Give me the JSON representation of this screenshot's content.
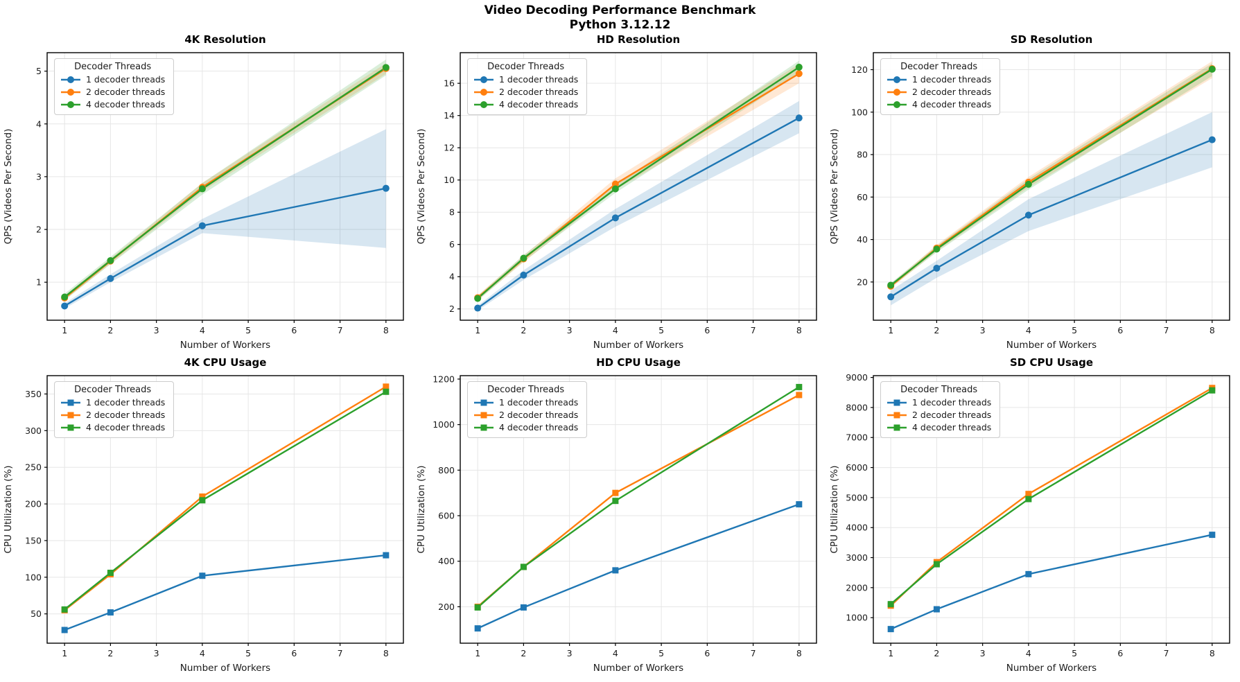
{
  "page": {
    "title_line1": "Video Decoding Performance Benchmark",
    "title_line2": "Python 3.12.12"
  },
  "colors": {
    "blue": "#1f77b4",
    "orange": "#ff7f0e",
    "green": "#2ca02c",
    "grid": "#e6e6e6",
    "frame": "#000000",
    "text": "#1a1a1a",
    "band_opacity": 0.18
  },
  "legend": {
    "title": "Decoder Threads",
    "entries": [
      "1 decoder threads",
      "2 decoder threads",
      "4 decoder threads"
    ]
  },
  "chart_data": [
    {
      "type": "line",
      "title": "4K Resolution",
      "xlabel": "Number of Workers",
      "ylabel": "QPS (Videos Per Second)",
      "x": [
        1,
        2,
        4,
        8
      ],
      "xticks": [
        1,
        2,
        3,
        4,
        5,
        6,
        7,
        8
      ],
      "xlim": [
        0.62,
        8.38
      ],
      "yticks": [
        1,
        2,
        3,
        4,
        5
      ],
      "ylim": [
        0.28,
        5.35
      ],
      "marker": "circle",
      "legend_title": "Decoder Threads",
      "series": [
        {
          "name": "1 decoder threads",
          "color": "#1f77b4",
          "values": [
            0.55,
            1.07,
            2.07,
            2.78
          ],
          "band_lo": [
            0.5,
            1.0,
            1.93,
            1.65
          ],
          "band_hi": [
            0.6,
            1.15,
            2.2,
            3.9
          ]
        },
        {
          "name": "2 decoder threads",
          "color": "#ff7f0e",
          "values": [
            0.7,
            1.4,
            2.8,
            5.05
          ],
          "band_lo": [
            0.66,
            1.35,
            2.72,
            4.95
          ],
          "band_hi": [
            0.74,
            1.45,
            2.88,
            5.15
          ]
        },
        {
          "name": "4 decoder threads",
          "color": "#2ca02c",
          "values": [
            0.72,
            1.41,
            2.77,
            5.07
          ],
          "band_lo": [
            0.66,
            1.34,
            2.66,
            4.92
          ],
          "band_hi": [
            0.78,
            1.48,
            2.88,
            5.22
          ]
        }
      ]
    },
    {
      "type": "line",
      "title": "HD Resolution",
      "xlabel": "Number of Workers",
      "ylabel": "QPS (Videos Per Second)",
      "x": [
        1,
        2,
        4,
        8
      ],
      "xticks": [
        1,
        2,
        3,
        4,
        5,
        6,
        7,
        8
      ],
      "xlim": [
        0.62,
        8.38
      ],
      "yticks": [
        2,
        4,
        6,
        8,
        10,
        12,
        14,
        16
      ],
      "ylim": [
        1.3,
        17.9
      ],
      "marker": "circle",
      "legend_title": "Decoder Threads",
      "series": [
        {
          "name": "1 decoder threads",
          "color": "#1f77b4",
          "values": [
            2.05,
            4.1,
            7.65,
            13.85
          ],
          "band_lo": [
            1.9,
            3.8,
            7.1,
            12.9
          ],
          "band_hi": [
            2.2,
            4.4,
            8.2,
            14.9
          ]
        },
        {
          "name": "2 decoder threads",
          "color": "#ff7f0e",
          "values": [
            2.7,
            5.1,
            9.75,
            16.6
          ],
          "band_lo": [
            2.55,
            4.9,
            9.4,
            16.0
          ],
          "band_hi": [
            2.85,
            5.3,
            10.1,
            17.2
          ]
        },
        {
          "name": "4 decoder threads",
          "color": "#2ca02c",
          "values": [
            2.65,
            5.15,
            9.45,
            17.0
          ],
          "band_lo": [
            2.5,
            4.95,
            9.2,
            16.6
          ],
          "band_hi": [
            2.8,
            5.35,
            9.7,
            17.4
          ]
        }
      ]
    },
    {
      "type": "line",
      "title": "SD Resolution",
      "xlabel": "Number of Workers",
      "ylabel": "QPS (Videos Per Second)",
      "x": [
        1,
        2,
        4,
        8
      ],
      "xticks": [
        1,
        2,
        3,
        4,
        5,
        6,
        7,
        8
      ],
      "xlim": [
        0.62,
        8.38
      ],
      "yticks": [
        20,
        40,
        60,
        80,
        100,
        120
      ],
      "ylim": [
        2,
        128
      ],
      "marker": "circle",
      "legend_title": "Decoder Threads",
      "series": [
        {
          "name": "1 decoder threads",
          "color": "#1f77b4",
          "values": [
            13,
            26.5,
            51.5,
            87
          ],
          "band_lo": [
            9,
            22,
            44,
            74
          ],
          "band_hi": [
            16,
            30,
            59,
            100
          ]
        },
        {
          "name": "2 decoder threads",
          "color": "#ff7f0e",
          "values": [
            18,
            36,
            67,
            120.5
          ],
          "band_lo": [
            17,
            34.5,
            64.5,
            116
          ],
          "band_hi": [
            19,
            37.5,
            69.5,
            124
          ]
        },
        {
          "name": "4 decoder threads",
          "color": "#2ca02c",
          "values": [
            18.5,
            35.5,
            66,
            120.2
          ],
          "band_lo": [
            17.5,
            34,
            63.5,
            117
          ],
          "band_hi": [
            19.5,
            37,
            68.5,
            123
          ]
        }
      ]
    },
    {
      "type": "line",
      "title": "4K CPU Usage",
      "xlabel": "Number of Workers",
      "ylabel": "CPU Utilization (%)",
      "x": [
        1,
        2,
        4,
        8
      ],
      "xticks": [
        1,
        2,
        3,
        4,
        5,
        6,
        7,
        8
      ],
      "xlim": [
        0.62,
        8.38
      ],
      "yticks": [
        50,
        100,
        150,
        200,
        250,
        300,
        350
      ],
      "ylim": [
        10,
        375
      ],
      "marker": "square",
      "legend_title": "Decoder Threads",
      "series": [
        {
          "name": "1 decoder threads",
          "color": "#1f77b4",
          "values": [
            28,
            52,
            102,
            130
          ]
        },
        {
          "name": "2 decoder threads",
          "color": "#ff7f0e",
          "values": [
            55,
            104,
            210,
            360
          ]
        },
        {
          "name": "4 decoder threads",
          "color": "#2ca02c",
          "values": [
            56,
            106,
            205,
            353
          ]
        }
      ]
    },
    {
      "type": "line",
      "title": "HD CPU Usage",
      "xlabel": "Number of Workers",
      "ylabel": "CPU Utilization (%)",
      "x": [
        1,
        2,
        4,
        8
      ],
      "xticks": [
        1,
        2,
        3,
        4,
        5,
        6,
        7,
        8
      ],
      "xlim": [
        0.62,
        8.38
      ],
      "yticks": [
        200,
        400,
        600,
        800,
        1000,
        1200
      ],
      "ylim": [
        40,
        1215
      ],
      "marker": "square",
      "legend_title": "Decoder Threads",
      "series": [
        {
          "name": "1 decoder threads",
          "color": "#1f77b4",
          "values": [
            105,
            197,
            360,
            650
          ]
        },
        {
          "name": "2 decoder threads",
          "color": "#ff7f0e",
          "values": [
            200,
            375,
            700,
            1130
          ]
        },
        {
          "name": "4 decoder threads",
          "color": "#2ca02c",
          "values": [
            197,
            375,
            665,
            1165
          ]
        }
      ]
    },
    {
      "type": "line",
      "title": "SD CPU Usage",
      "xlabel": "Number of Workers",
      "ylabel": "CPU Utilization (%)",
      "x": [
        1,
        2,
        4,
        8
      ],
      "xticks": [
        1,
        2,
        3,
        4,
        5,
        6,
        7,
        8
      ],
      "xlim": [
        0.62,
        8.38
      ],
      "yticks": [
        1000,
        2000,
        3000,
        4000,
        5000,
        6000,
        7000,
        8000,
        9000
      ],
      "ylim": [
        150,
        9060
      ],
      "marker": "square",
      "legend_title": "Decoder Threads",
      "series": [
        {
          "name": "1 decoder threads",
          "color": "#1f77b4",
          "values": [
            620,
            1280,
            2450,
            3760
          ]
        },
        {
          "name": "2 decoder threads",
          "color": "#ff7f0e",
          "values": [
            1400,
            2850,
            5120,
            8650
          ]
        },
        {
          "name": "4 decoder threads",
          "color": "#2ca02c",
          "values": [
            1450,
            2780,
            4950,
            8570
          ]
        }
      ]
    }
  ]
}
